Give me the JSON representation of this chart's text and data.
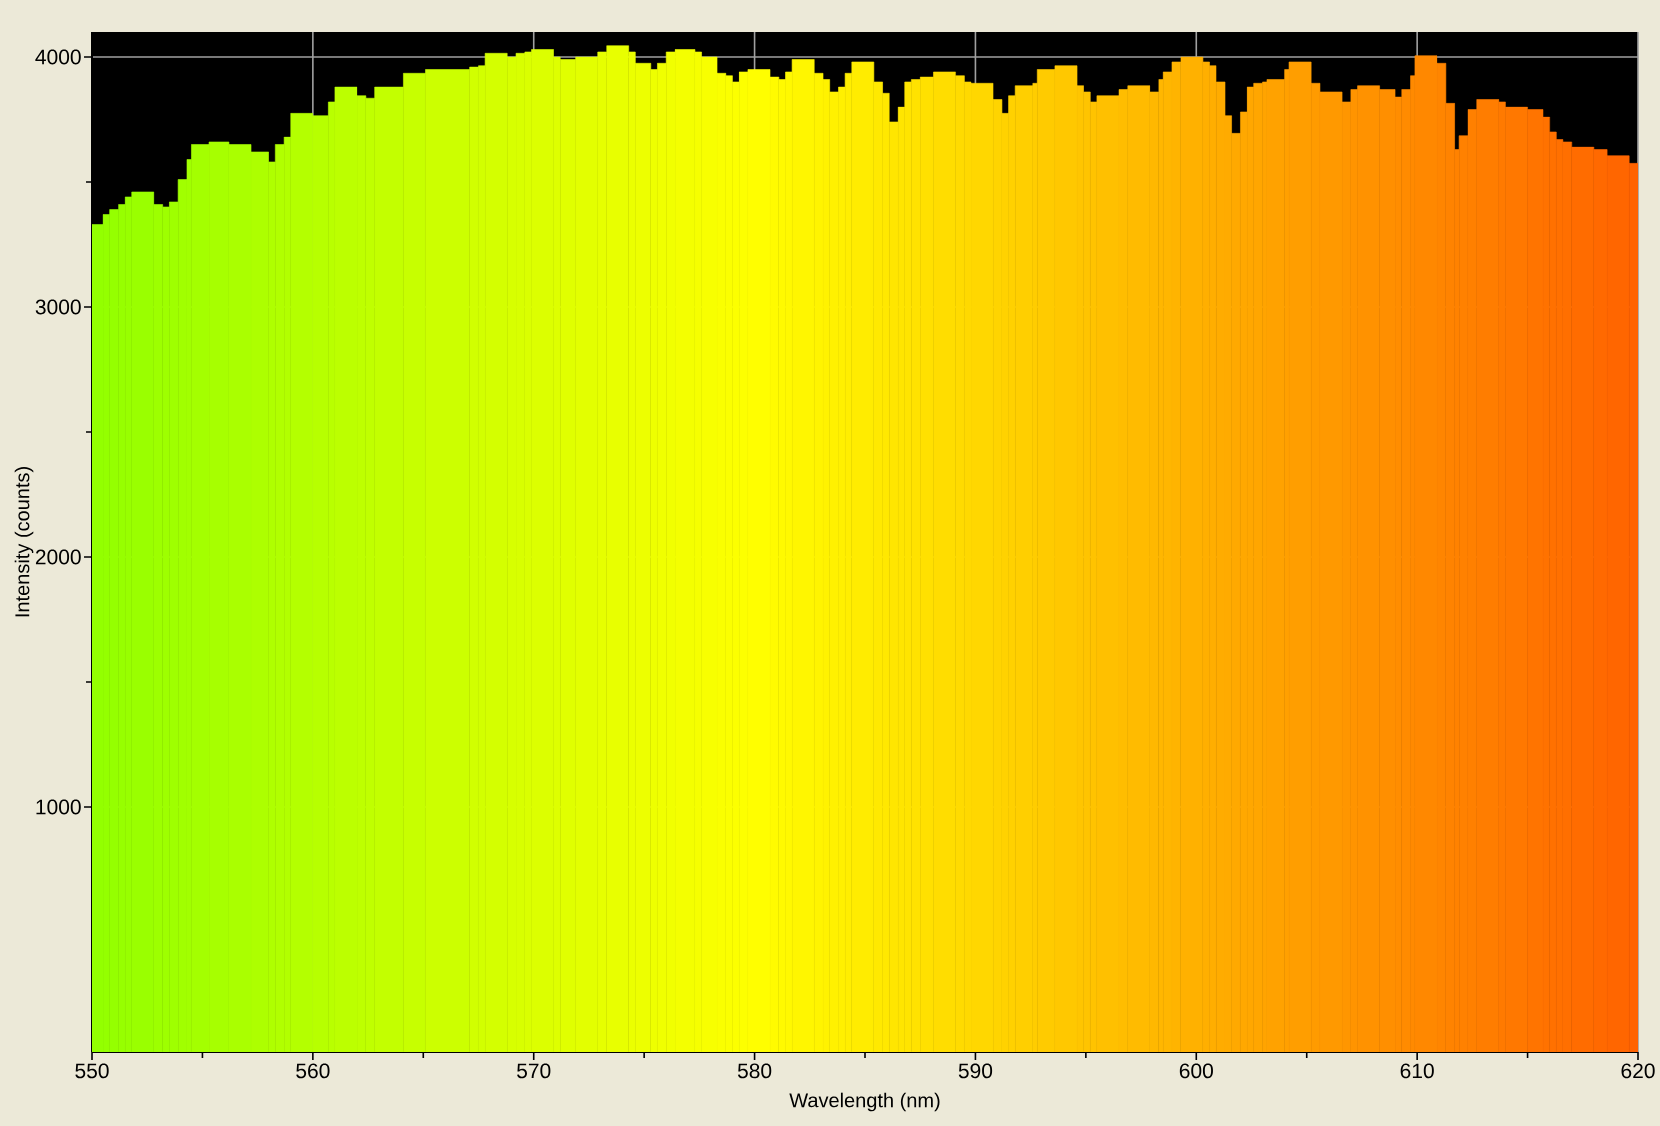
{
  "chart_data": {
    "type": "histogram",
    "xlabel": "Wavelength (nm)",
    "ylabel": "Intensity (counts)",
    "bins": [
      550.0,
      550.5,
      550.8,
      551.2,
      551.5,
      551.8,
      552.8,
      553.2,
      553.5,
      553.9,
      554.3,
      554.5,
      555.3,
      556.2,
      557.2,
      558.0,
      558.3,
      558.7,
      559.0,
      560.0,
      560.7,
      561.0,
      562.0,
      562.4,
      562.8,
      564.1,
      565.1,
      567.1,
      567.5,
      567.8,
      568.8,
      569.2,
      569.6,
      569.9,
      570.9,
      571.2,
      571.9,
      572.9,
      573.3,
      574.3,
      574.6,
      575.3,
      575.6,
      576.0,
      576.4,
      577.3,
      577.6,
      578.3,
      578.7,
      579.0,
      579.3,
      579.7,
      580.7,
      581.1,
      581.4,
      581.7,
      582.7,
      583.1,
      583.4,
      583.8,
      584.1,
      584.4,
      585.4,
      585.8,
      586.1,
      586.5,
      586.8,
      587.1,
      587.5,
      588.1,
      589.1,
      589.5,
      589.8,
      590.8,
      591.2,
      591.5,
      591.8,
      592.6,
      592.8,
      593.6,
      594.6,
      594.9,
      595.2,
      595.5,
      596.5,
      596.9,
      597.9,
      598.3,
      598.5,
      598.9,
      599.3,
      600.3,
      600.6,
      600.9,
      601.3,
      601.6,
      602.0,
      602.3,
      602.6,
      603.0,
      603.2,
      604.0,
      604.2,
      605.2,
      605.6,
      606.6,
      607.0,
      607.3,
      608.3,
      609.0,
      609.3,
      609.7,
      609.9,
      610.9,
      611.3,
      611.7,
      611.9,
      612.3,
      612.7,
      613.7,
      614.0,
      615.0,
      615.7,
      616.0,
      616.3,
      616.6,
      617.0,
      618.0,
      618.6,
      619.6,
      620.0
    ],
    "values": [
      3330,
      3370,
      3390,
      3410,
      3440,
      3460,
      3410,
      3400,
      3420,
      3510,
      3590,
      3650,
      3660,
      3650,
      3620,
      3580,
      3650,
      3680,
      3775,
      3765,
      3820,
      3880,
      3845,
      3835,
      3880,
      3935,
      3950,
      3960,
      3965,
      4015,
      4000,
      4015,
      4020,
      4030,
      4000,
      3990,
      4000,
      4020,
      4045,
      4020,
      3975,
      3950,
      3975,
      4020,
      4030,
      4020,
      4000,
      3935,
      3925,
      3900,
      3940,
      3950,
      3920,
      3910,
      3940,
      3990,
      3935,
      3910,
      3860,
      3880,
      3935,
      3980,
      3900,
      3855,
      3740,
      3800,
      3900,
      3910,
      3920,
      3940,
      3925,
      3900,
      3895,
      3830,
      3775,
      3845,
      3885,
      3895,
      3950,
      3965,
      3885,
      3860,
      3820,
      3845,
      3870,
      3885,
      3860,
      3910,
      3940,
      3980,
      4000,
      3980,
      3965,
      3900,
      3765,
      3695,
      3780,
      3880,
      3895,
      3900,
      3910,
      3950,
      3980,
      3895,
      3860,
      3820,
      3870,
      3885,
      3870,
      3840,
      3870,
      3925,
      4005,
      3975,
      3815,
      3630,
      3685,
      3790,
      3830,
      3820,
      3800,
      3790,
      3760,
      3700,
      3670,
      3660,
      3640,
      3630,
      3605,
      3575
    ],
    "colors": [
      "#93ff00",
      "#94ff00",
      "#95ff00",
      "#97ff00",
      "#98ff00",
      "#9aff00",
      "#9dff00",
      "#9eff00",
      "#9fff00",
      "#a1ff00",
      "#a2ff00",
      "#a4ff00",
      "#a7ff00",
      "#aaff00",
      "#adff00",
      "#afff00",
      "#b1ff00",
      "#b2ff00",
      "#b4ff00",
      "#b7ff00",
      "#b9ff00",
      "#bcff00",
      "#beff00",
      "#c0ff00",
      "#c3ff00",
      "#c7ff00",
      "#ccff00",
      "#d1ff00",
      "#d2ff00",
      "#d4ff00",
      "#d7ff00",
      "#d8ff00",
      "#daff00",
      "#dcff00",
      "#deff00",
      "#e0ff00",
      "#e3ff00",
      "#e6ff00",
      "#e8ff00",
      "#ebff00",
      "#edff00",
      "#eeff00",
      "#f0ff00",
      "#f1ff00",
      "#f4ff00",
      "#f6ff00",
      "#f8ff00",
      "#faff00",
      "#fbff00",
      "#fcff00",
      "#fdff00",
      "#fffe00",
      "#fffb00",
      "#fffa00",
      "#fff900",
      "#fff600",
      "#fff400",
      "#fff200",
      "#fff100",
      "#fff000",
      "#ffee00",
      "#ffec00",
      "#ffe900",
      "#ffe800",
      "#ffe600",
      "#ffe500",
      "#ffe400",
      "#ffe200",
      "#ffe000",
      "#ffdd00",
      "#ffdb00",
      "#ffd900",
      "#ffd700",
      "#ffd400",
      "#ffd200",
      "#ffd100",
      "#ffcf00",
      "#ffcd00",
      "#ffcb00",
      "#ffc800",
      "#ffc500",
      "#ffc400",
      "#ffc300",
      "#ffc000",
      "#ffbd00",
      "#ffbb00",
      "#ffb800",
      "#ffb700",
      "#ffb600",
      "#ffb400",
      "#ffb100",
      "#ffaf00",
      "#ffae00",
      "#ffac00",
      "#ffab00",
      "#ffa900",
      "#ffa800",
      "#ffa700",
      "#ffa600",
      "#ffa400",
      "#ffa200",
      "#ffa000",
      "#ff9e00",
      "#ff9b00",
      "#ff9900",
      "#ff9600",
      "#ff9400",
      "#ff9200",
      "#ff8f00",
      "#ff8d00",
      "#ff8b00",
      "#ff8a00",
      "#ff8800",
      "#ff8500",
      "#ff8300",
      "#ff8200",
      "#ff8100",
      "#ff8000",
      "#ff7d00",
      "#ff7a00",
      "#ff7800",
      "#ff7400",
      "#ff7200",
      "#ff7100",
      "#ff7000",
      "#ff6f00",
      "#ff6c00",
      "#ff6900",
      "#ff6600",
      "#ff6300"
    ],
    "xlim": [
      550,
      620
    ],
    "ylim": [
      20,
      4100
    ],
    "xticks": [
      550,
      {
        "value": 555,
        "label": null
      },
      560,
      {
        "value": 565,
        "label": null
      },
      570,
      {
        "value": 575,
        "label": null
      },
      580,
      {
        "value": 585,
        "label": null
      },
      590,
      {
        "value": 595,
        "label": null
      },
      600,
      {
        "value": 605,
        "label": null
      },
      610,
      {
        "value": 615,
        "label": null
      },
      620
    ],
    "yticks": [
      1000,
      {
        "value": 1500,
        "label": null
      },
      2000,
      {
        "value": 2500,
        "label": null
      },
      3000,
      {
        "value": 3500,
        "label": null
      },
      4000
    ],
    "grid": true
  }
}
